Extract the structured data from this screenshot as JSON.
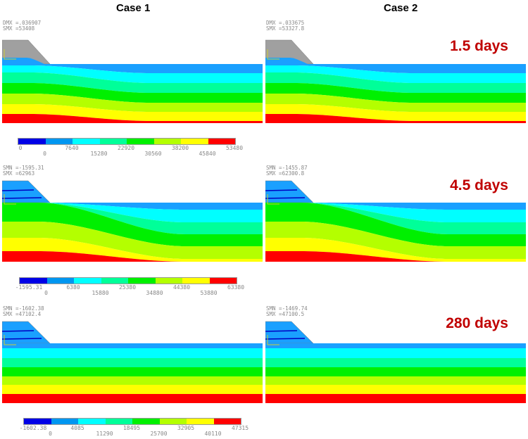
{
  "headers": {
    "case1": "Case 1",
    "case2": "Case 2"
  },
  "colors": {
    "legend": [
      "#0000e6",
      "#0096f0",
      "#00ffff",
      "#00ff99",
      "#00f000",
      "#b4ff00",
      "#ffff00",
      "#ff0000"
    ],
    "bands": [
      "#1aa0ff",
      "#00ffff",
      "#00ff99",
      "#00f000",
      "#b4ff00",
      "#ffff00",
      "#ff0000"
    ],
    "embankment_initial": "#a0a0a0",
    "embankment_later": "#1aa0ff",
    "day_label": "#c00000"
  },
  "rows": [
    {
      "time": "1.5 days",
      "embankment": "gray",
      "case1": {
        "line1": "DMX =.036907",
        "line2": "SMX =53408"
      },
      "case2": {
        "line1": "DMX =.033675",
        "line2": "SMX =53327.8"
      },
      "legend": [
        "0",
        "0",
        "7640",
        "15280",
        "22920",
        "30560",
        "38200",
        "45840",
        "53480"
      ]
    },
    {
      "time": "4.5 days",
      "embankment": "blue",
      "case1": {
        "line1": "SMN =-1595.31",
        "line2": "SMX =62963"
      },
      "case2": {
        "line1": "SMN =-1455.87",
        "line2": "SMX =62300.8"
      },
      "legend": [
        "-1595.31",
        "0",
        "6380",
        "15880",
        "25380",
        "34880",
        "44380",
        "53880",
        "63380"
      ]
    },
    {
      "time": "280 days",
      "embankment": "blue",
      "case1": {
        "line1": "SMN =-1602.38",
        "line2": "SMX =47102.4"
      },
      "case2": {
        "line1": "SMN =-1469.74",
        "line2": "SMX =47100.5"
      },
      "legend": [
        "-1602.38",
        "0",
        "4085",
        "11290",
        "18495",
        "25700",
        "32905",
        "40110",
        "47315"
      ]
    }
  ]
}
